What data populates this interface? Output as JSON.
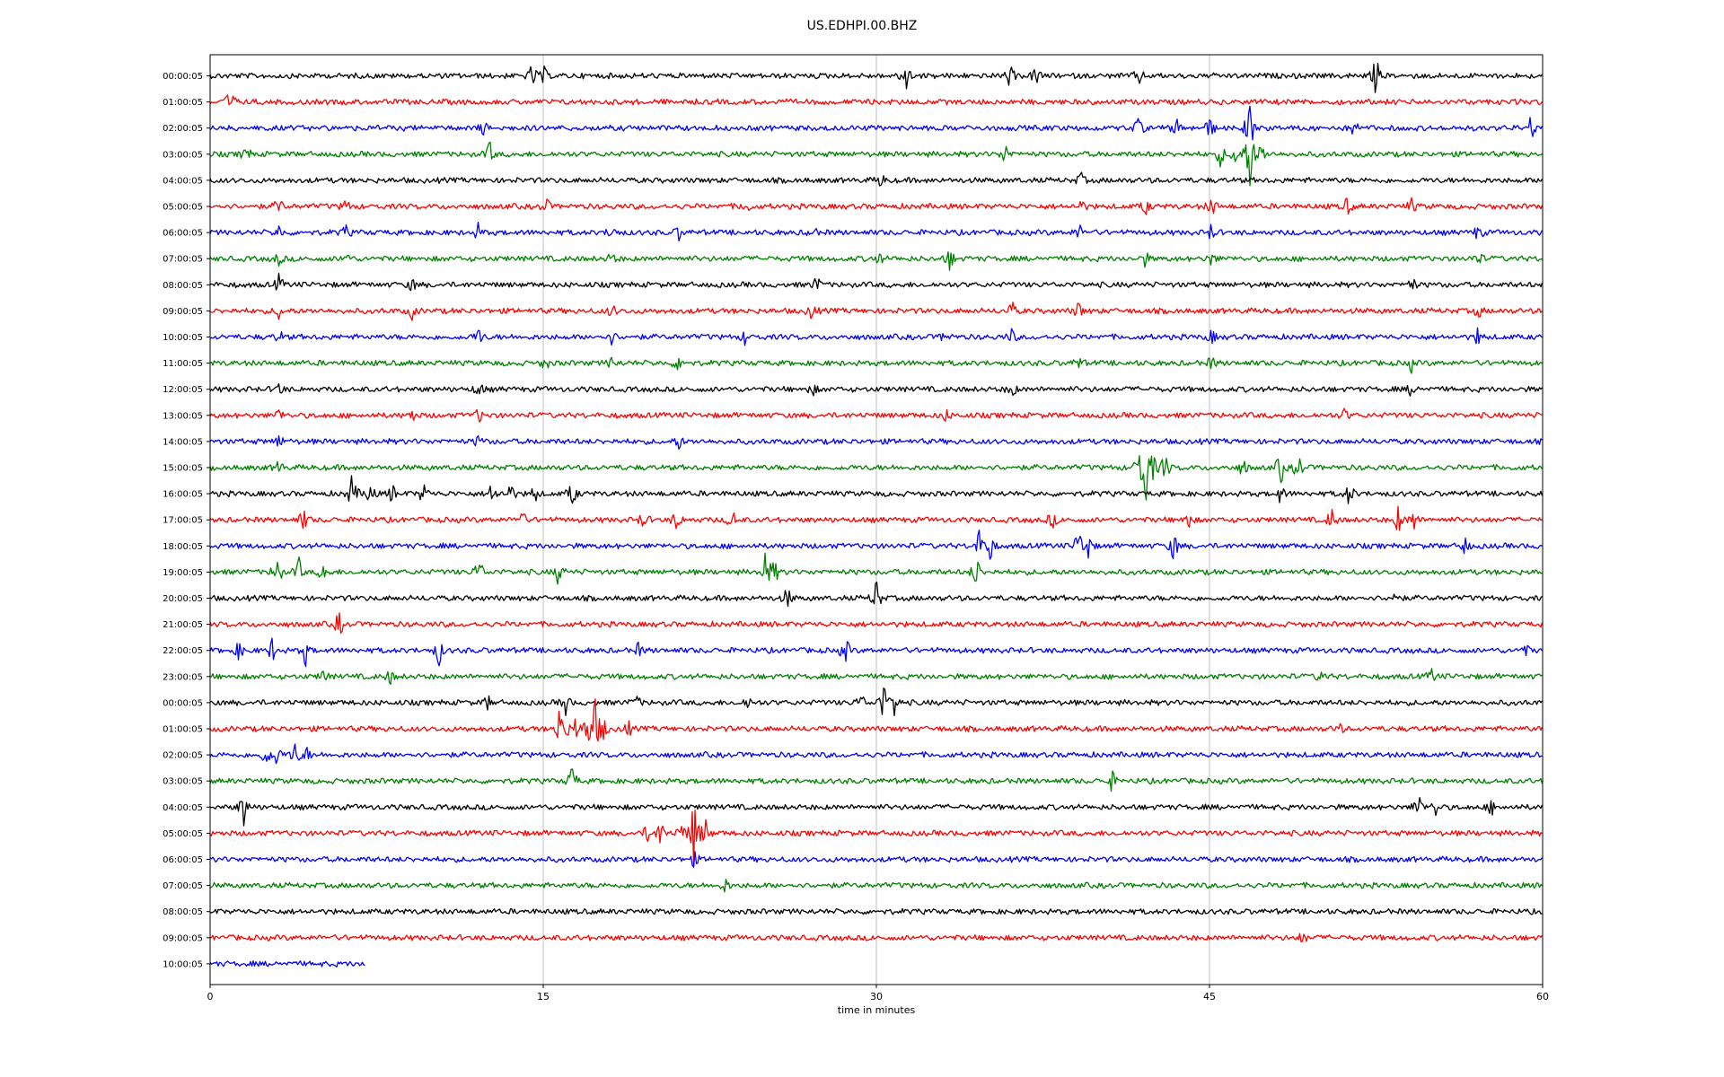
{
  "chart_data": {
    "type": "line",
    "title": "US.EDHPI.00.BHZ",
    "xlabel": "time in minutes",
    "ylabel": "",
    "xlim": [
      0,
      60
    ],
    "x_ticks": [
      "0",
      "15",
      "30",
      "45",
      "60"
    ],
    "x_tick_values": [
      0,
      15,
      30,
      45,
      60
    ],
    "grid": "vertical",
    "legend": "none",
    "colors": [
      "#000000",
      "#ff0000",
      "#0000ff",
      "#008000"
    ],
    "traces": [
      {
        "label": "00:00:05",
        "color": "#000000",
        "end_min": 60,
        "events": [
          [
            14.5,
            0.5
          ],
          [
            15,
            0.4
          ],
          [
            31.3,
            1.0
          ],
          [
            36,
            0.5
          ],
          [
            37.2,
            0.5
          ],
          [
            41.8,
            0.4
          ],
          [
            52.5,
            0.9
          ]
        ]
      },
      {
        "label": "01:00:05",
        "color": "#ff0000",
        "end_min": 60,
        "events": [
          [
            0.9,
            0.7
          ]
        ]
      },
      {
        "label": "02:00:05",
        "color": "#0000ff",
        "end_min": 60,
        "events": [
          [
            12.3,
            0.3
          ],
          [
            41.8,
            0.5
          ],
          [
            43.5,
            0.4
          ],
          [
            45,
            0.5
          ],
          [
            46.8,
            1.4
          ],
          [
            51.5,
            0.4
          ],
          [
            59.5,
            0.6
          ]
        ]
      },
      {
        "label": "03:00:05",
        "color": "#008000",
        "end_min": 60,
        "events": [
          [
            1.6,
            0.4
          ],
          [
            12.6,
            0.5
          ],
          [
            35.8,
            0.5
          ],
          [
            45.5,
            0.5
          ],
          [
            46.2,
            0.7
          ],
          [
            46.8,
            1.7
          ],
          [
            47.3,
            0.6
          ]
        ]
      },
      {
        "label": "04:00:05",
        "color": "#000000",
        "end_min": 60,
        "events": [
          [
            30.2,
            0.3
          ],
          [
            39.2,
            0.3
          ]
        ]
      },
      {
        "label": "05:00:05",
        "color": "#ff0000",
        "end_min": 60,
        "events": [
          [
            3.1,
            0.4
          ],
          [
            6.1,
            0.3
          ],
          [
            15.1,
            0.4
          ],
          [
            24.1,
            0.4
          ],
          [
            39.2,
            0.3
          ],
          [
            42.1,
            0.4
          ],
          [
            45.1,
            0.5
          ],
          [
            51.2,
            0.4
          ],
          [
            54.1,
            0.3
          ]
        ]
      },
      {
        "label": "06:00:05",
        "color": "#0000ff",
        "end_min": 60,
        "events": [
          [
            3.1,
            0.3
          ],
          [
            6.1,
            0.3
          ],
          [
            12.1,
            0.4
          ],
          [
            18.1,
            0.4
          ],
          [
            21.1,
            0.3
          ],
          [
            27.1,
            0.3
          ],
          [
            39.1,
            0.4
          ],
          [
            45.1,
            0.4
          ],
          [
            57.1,
            0.4
          ]
        ]
      },
      {
        "label": "07:00:05",
        "color": "#008000",
        "end_min": 60,
        "events": [
          [
            3.1,
            0.3
          ],
          [
            6.1,
            0.3
          ],
          [
            18.1,
            0.3
          ],
          [
            30.1,
            0.3
          ],
          [
            33.3,
            0.5
          ],
          [
            42.1,
            0.3
          ],
          [
            45.1,
            0.3
          ],
          [
            57.1,
            0.3
          ]
        ]
      },
      {
        "label": "08:00:05",
        "color": "#000000",
        "end_min": 60,
        "events": [
          [
            3.1,
            0.4
          ],
          [
            9.1,
            0.3
          ],
          [
            27.3,
            0.4
          ],
          [
            54.1,
            0.4
          ]
        ]
      },
      {
        "label": "09:00:05",
        "color": "#ff0000",
        "end_min": 60,
        "events": [
          [
            3.1,
            0.3
          ],
          [
            9.1,
            0.3
          ],
          [
            18.1,
            0.3
          ],
          [
            27.1,
            0.4
          ],
          [
            36.1,
            0.4
          ],
          [
            39.1,
            0.4
          ],
          [
            57.1,
            0.3
          ]
        ]
      },
      {
        "label": "10:00:05",
        "color": "#0000ff",
        "end_min": 60,
        "events": [
          [
            3.1,
            0.3
          ],
          [
            12.1,
            0.4
          ],
          [
            18.1,
            0.3
          ],
          [
            24.1,
            0.3
          ],
          [
            33.1,
            0.3
          ],
          [
            36.1,
            0.3
          ],
          [
            45.1,
            0.3
          ],
          [
            57.1,
            0.4
          ]
        ]
      },
      {
        "label": "11:00:05",
        "color": "#008000",
        "end_min": 60,
        "events": [
          [
            15.1,
            0.3
          ],
          [
            18.1,
            0.3
          ],
          [
            21.1,
            0.4
          ],
          [
            39.1,
            0.3
          ],
          [
            45.1,
            0.3
          ],
          [
            54.1,
            0.3
          ]
        ]
      },
      {
        "label": "12:00:05",
        "color": "#000000",
        "end_min": 60,
        "events": [
          [
            3.1,
            0.3
          ],
          [
            12.1,
            0.4
          ],
          [
            27.1,
            0.3
          ],
          [
            36.1,
            0.4
          ],
          [
            54.1,
            0.3
          ]
        ]
      },
      {
        "label": "13:00:05",
        "color": "#ff0000",
        "end_min": 60,
        "events": [
          [
            3.1,
            0.3
          ],
          [
            9.1,
            0.3
          ],
          [
            12.1,
            0.3
          ],
          [
            33.1,
            0.3
          ],
          [
            51.1,
            0.3
          ]
        ]
      },
      {
        "label": "14:00:05",
        "color": "#0000ff",
        "end_min": 60,
        "events": [
          [
            3.1,
            0.3
          ],
          [
            12.1,
            0.3
          ],
          [
            21.1,
            0.3
          ]
        ]
      },
      {
        "label": "15:00:05",
        "color": "#008000",
        "end_min": 60,
        "events": [
          [
            3.1,
            0.3
          ],
          [
            41.8,
            0.9
          ],
          [
            42.1,
            1.8
          ],
          [
            42.4,
            0.8
          ],
          [
            43,
            0.7
          ],
          [
            46.5,
            0.4
          ],
          [
            48.2,
            0.8
          ],
          [
            49,
            0.7
          ]
        ]
      },
      {
        "label": "16:00:05",
        "color": "#000000",
        "end_min": 60,
        "events": [
          [
            6.4,
            0.9
          ],
          [
            7.2,
            0.6
          ],
          [
            8.2,
            0.4
          ],
          [
            9.6,
            0.5
          ],
          [
            12.7,
            0.6
          ],
          [
            13.5,
            0.5
          ],
          [
            14.6,
            0.4
          ],
          [
            16.3,
            0.6
          ],
          [
            48.2,
            0.4
          ],
          [
            51.3,
            0.6
          ]
        ]
      },
      {
        "label": "17:00:05",
        "color": "#ff0000",
        "end_min": 60,
        "events": [
          [
            4.2,
            0.5
          ],
          [
            14,
            0.5
          ],
          [
            19.5,
            0.4
          ],
          [
            21,
            0.5
          ],
          [
            23.5,
            0.5
          ],
          [
            37.9,
            0.4
          ],
          [
            44,
            0.5
          ],
          [
            50.5,
            0.6
          ],
          [
            53.5,
            0.6
          ],
          [
            54.2,
            0.5
          ]
        ]
      },
      {
        "label": "18:00:05",
        "color": "#0000ff",
        "end_min": 60,
        "events": [
          [
            34.6,
            0.7
          ],
          [
            35.1,
            0.8
          ],
          [
            39.1,
            0.8
          ],
          [
            39.5,
            0.7
          ],
          [
            43.4,
            0.7
          ],
          [
            56.5,
            0.4
          ]
        ]
      },
      {
        "label": "19:00:05",
        "color": "#008000",
        "end_min": 60,
        "events": [
          [
            3,
            0.9
          ],
          [
            4,
            0.5
          ],
          [
            5.1,
            0.5
          ],
          [
            12.1,
            0.7
          ],
          [
            15.7,
            0.6
          ],
          [
            25,
            0.8
          ],
          [
            25.4,
            0.6
          ],
          [
            34.5,
            0.8
          ]
        ]
      },
      {
        "label": "20:00:05",
        "color": "#000000",
        "end_min": 60,
        "events": [
          [
            26,
            0.5
          ],
          [
            30,
            0.9
          ],
          [
            53.3,
            0.3
          ]
        ]
      },
      {
        "label": "21:00:05",
        "color": "#ff0000",
        "end_min": 60,
        "events": [
          [
            5.8,
            0.6
          ]
        ]
      },
      {
        "label": "22:00:05",
        "color": "#0000ff",
        "end_min": 60,
        "events": [
          [
            1.3,
            0.4
          ],
          [
            2.8,
            0.5
          ],
          [
            4.3,
            0.6
          ],
          [
            10.3,
            0.6
          ],
          [
            19.3,
            0.3
          ],
          [
            28.6,
            0.7
          ],
          [
            59.2,
            0.3
          ]
        ]
      },
      {
        "label": "23:00:05",
        "color": "#008000",
        "end_min": 60,
        "events": [
          [
            5.1,
            0.3
          ],
          [
            8.1,
            0.3
          ],
          [
            50,
            0.3
          ],
          [
            55,
            0.3
          ]
        ]
      },
      {
        "label": "00:00:05",
        "color": "#000000",
        "end_min": 60,
        "events": [
          [
            12.5,
            0.3
          ],
          [
            16,
            0.5
          ],
          [
            19.2,
            0.3
          ],
          [
            24.2,
            0.3
          ],
          [
            29.3,
            0.4
          ],
          [
            30.3,
            0.9
          ],
          [
            30.8,
            0.6
          ]
        ]
      },
      {
        "label": "01:00:05",
        "color": "#ff0000",
        "end_min": 60,
        "events": [
          [
            15.8,
            1.7
          ],
          [
            16.4,
            0.7
          ],
          [
            17,
            0.8
          ],
          [
            17.3,
            1.6
          ],
          [
            17.7,
            0.6
          ],
          [
            18.8,
            0.4
          ],
          [
            50.8,
            0.3
          ]
        ]
      },
      {
        "label": "02:00:05",
        "color": "#0000ff",
        "end_min": 60,
        "events": [
          [
            2.5,
            0.5
          ],
          [
            3,
            0.5
          ],
          [
            3.8,
            0.6
          ],
          [
            4.3,
            0.4
          ]
        ]
      },
      {
        "label": "03:00:05",
        "color": "#008000",
        "end_min": 60,
        "events": [
          [
            16.3,
            0.7
          ],
          [
            40.6,
            0.4
          ]
        ]
      },
      {
        "label": "04:00:05",
        "color": "#000000",
        "end_min": 60,
        "events": [
          [
            1.5,
            0.9
          ],
          [
            54.4,
            0.7
          ],
          [
            55.2,
            0.4
          ],
          [
            57.7,
            0.3
          ]
        ]
      },
      {
        "label": "05:00:05",
        "color": "#ff0000",
        "end_min": 60,
        "events": [
          [
            19.7,
            0.4
          ],
          [
            20.3,
            0.7
          ],
          [
            21.2,
            0.5
          ],
          [
            21.8,
            1.8
          ],
          [
            22.3,
            0.6
          ]
        ]
      },
      {
        "label": "06:00:05",
        "color": "#0000ff",
        "end_min": 60,
        "events": [
          [
            21.8,
            0.3
          ]
        ]
      },
      {
        "label": "07:00:05",
        "color": "#008000",
        "end_min": 60,
        "events": [
          [
            23.2,
            0.3
          ]
        ]
      },
      {
        "label": "08:00:05",
        "color": "#000000",
        "end_min": 60,
        "events": []
      },
      {
        "label": "09:00:05",
        "color": "#ff0000",
        "end_min": 60,
        "events": [
          [
            49.2,
            0.3
          ]
        ]
      },
      {
        "label": "10:00:05",
        "color": "#0000ff",
        "end_min": 7,
        "events": []
      }
    ]
  }
}
